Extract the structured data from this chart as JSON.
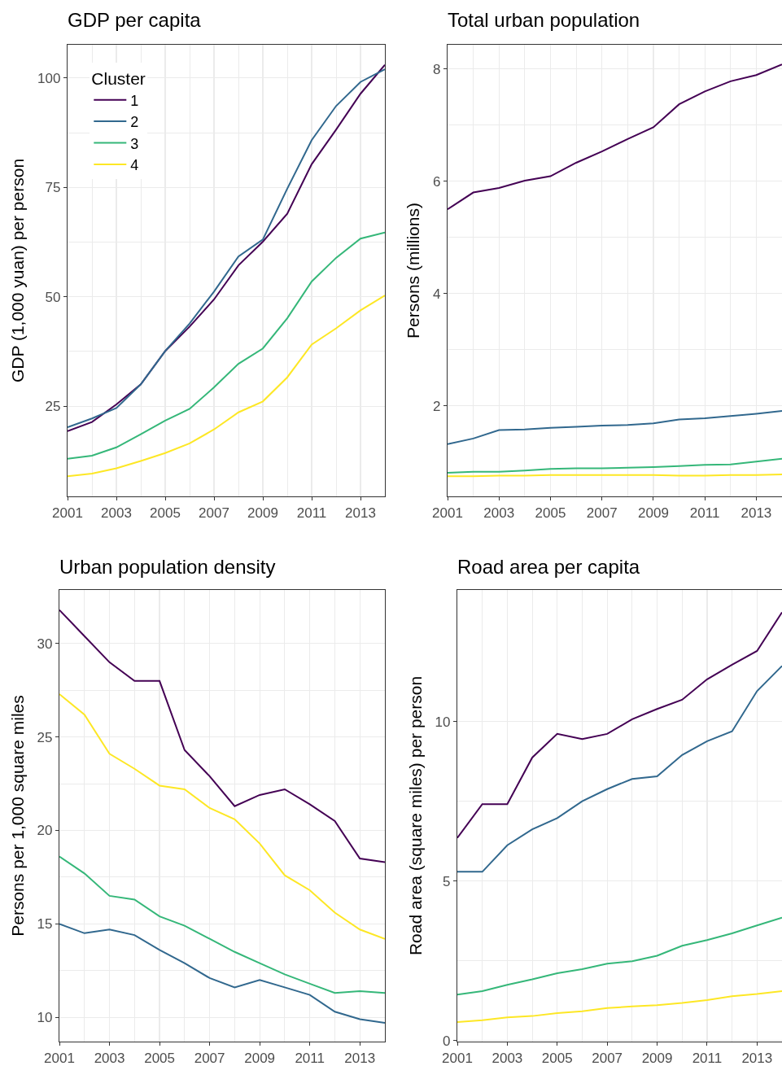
{
  "chart_data": [
    {
      "type": "line",
      "title": "GDP per capita",
      "ylabel": "GDP (1,000 yuan) per person",
      "legend_title": "Cluster",
      "legend": "top left",
      "grid": true,
      "x": [
        2001,
        2002,
        2003,
        2004,
        2005,
        2006,
        2007,
        2008,
        2009,
        2010,
        2011,
        2012,
        2013,
        2014
      ],
      "xlim": [
        2001,
        2014
      ],
      "xticks": [
        2001,
        2003,
        2005,
        2007,
        2009,
        2011,
        2013
      ],
      "ylim": [
        4.4,
        107.6
      ],
      "yticks": [
        25,
        50,
        75,
        100
      ],
      "series": [
        {
          "name": "1",
          "color": "#440154",
          "values": [
            19.3,
            21.4,
            25.4,
            30.0,
            37.6,
            43.2,
            49.4,
            57.2,
            62.6,
            69.0,
            80.3,
            88.2,
            96.4,
            103.0
          ]
        },
        {
          "name": "2",
          "color": "#31688e",
          "values": [
            20.2,
            22.2,
            24.6,
            30.0,
            37.6,
            43.9,
            51.2,
            59.2,
            63.1,
            74.7,
            85.8,
            93.6,
            99.1,
            102.0
          ]
        },
        {
          "name": "3",
          "color": "#35b779",
          "values": [
            13.0,
            13.7,
            15.6,
            18.6,
            21.7,
            24.4,
            29.3,
            34.7,
            38.2,
            45.1,
            53.5,
            58.9,
            63.3,
            64.7
          ]
        },
        {
          "name": "4",
          "color": "#fde725",
          "values": [
            9.0,
            9.6,
            10.8,
            12.5,
            14.3,
            16.5,
            19.7,
            23.6,
            26.1,
            31.6,
            39.1,
            42.8,
            46.9,
            50.3
          ]
        }
      ]
    },
    {
      "type": "line",
      "title": "Total urban population",
      "ylabel": "Persons (millions)",
      "grid": true,
      "x": [
        2001,
        2002,
        2003,
        2004,
        2005,
        2006,
        2007,
        2008,
        2009,
        2010,
        2011,
        2012,
        2013,
        2014
      ],
      "xlim": [
        2001,
        2014
      ],
      "xticks": [
        2001,
        2003,
        2005,
        2007,
        2009,
        2011,
        2013
      ],
      "ylim": [
        0.39,
        8.43
      ],
      "yticks": [
        2,
        4,
        6,
        8
      ],
      "series": [
        {
          "color": "#440154",
          "values": [
            5.5,
            5.8,
            5.88,
            6.01,
            6.09,
            6.33,
            6.53,
            6.75,
            6.96,
            7.37,
            7.6,
            7.78,
            7.89,
            8.08
          ]
        },
        {
          "color": "#31688e",
          "values": [
            1.32,
            1.42,
            1.57,
            1.58,
            1.61,
            1.63,
            1.65,
            1.66,
            1.69,
            1.76,
            1.78,
            1.82,
            1.86,
            1.91
          ]
        },
        {
          "color": "#35b779",
          "values": [
            0.81,
            0.83,
            0.83,
            0.85,
            0.88,
            0.89,
            0.89,
            0.9,
            0.91,
            0.93,
            0.95,
            0.96,
            1.01,
            1.06
          ]
        },
        {
          "color": "#fde725",
          "values": [
            0.75,
            0.75,
            0.76,
            0.76,
            0.77,
            0.77,
            0.77,
            0.77,
            0.77,
            0.76,
            0.76,
            0.77,
            0.77,
            0.78
          ]
        }
      ]
    },
    {
      "type": "line",
      "title": "Urban population density",
      "ylabel": "Persons per 1,000 square miles",
      "grid": true,
      "x": [
        2001,
        2002,
        2003,
        2004,
        2005,
        2006,
        2007,
        2008,
        2009,
        2010,
        2011,
        2012,
        2013,
        2014
      ],
      "xlim": [
        2001,
        2014
      ],
      "xticks": [
        2001,
        2003,
        2005,
        2007,
        2009,
        2011,
        2013
      ],
      "ylim": [
        8.7,
        32.87
      ],
      "yticks": [
        10,
        15,
        20,
        25,
        30
      ],
      "series": [
        {
          "color": "#440154",
          "values": [
            31.8,
            30.4,
            29.0,
            28.0,
            28.0,
            24.3,
            22.9,
            21.3,
            21.9,
            22.2,
            21.4,
            20.5,
            18.5,
            18.3
          ]
        },
        {
          "color": "#31688e",
          "values": [
            15.0,
            14.5,
            14.7,
            14.4,
            13.6,
            12.9,
            12.1,
            11.6,
            12.0,
            11.6,
            11.2,
            10.3,
            9.9,
            9.7
          ]
        },
        {
          "color": "#35b779",
          "values": [
            18.6,
            17.7,
            16.5,
            16.3,
            15.4,
            14.9,
            14.2,
            13.5,
            12.9,
            12.3,
            11.8,
            11.3,
            11.4,
            11.3
          ]
        },
        {
          "color": "#fde725",
          "values": [
            27.3,
            26.2,
            24.1,
            23.3,
            22.4,
            22.2,
            21.2,
            20.6,
            19.3,
            17.6,
            16.8,
            15.6,
            14.7,
            14.2
          ]
        }
      ]
    },
    {
      "type": "line",
      "title": "Road area per capita",
      "ylabel": "Road area (square miles) per person",
      "grid": true,
      "x": [
        2001,
        2002,
        2003,
        2004,
        2005,
        2006,
        2007,
        2008,
        2009,
        2010,
        2011,
        2012,
        2013,
        2014
      ],
      "xlim": [
        2001,
        2014
      ],
      "xticks": [
        2001,
        2003,
        2005,
        2007,
        2009,
        2011,
        2013
      ],
      "ylim": [
        -0.03,
        14.12
      ],
      "yticks": [
        0,
        5,
        10
      ],
      "series": [
        {
          "color": "#440154",
          "values": [
            6.35,
            7.41,
            7.41,
            8.87,
            9.61,
            9.45,
            9.61,
            10.07,
            10.39,
            10.68,
            11.32,
            11.78,
            12.21,
            13.42
          ]
        },
        {
          "color": "#31688e",
          "values": [
            5.29,
            5.29,
            6.12,
            6.62,
            6.97,
            7.5,
            7.88,
            8.2,
            8.28,
            8.95,
            9.38,
            9.69,
            10.95,
            11.74
          ]
        },
        {
          "color": "#35b779",
          "values": [
            1.44,
            1.55,
            1.75,
            1.92,
            2.11,
            2.24,
            2.41,
            2.49,
            2.66,
            2.97,
            3.15,
            3.36,
            3.61,
            3.85
          ]
        },
        {
          "color": "#fde725",
          "values": [
            0.58,
            0.64,
            0.73,
            0.77,
            0.86,
            0.92,
            1.02,
            1.07,
            1.11,
            1.18,
            1.27,
            1.39,
            1.46,
            1.55
          ]
        }
      ]
    }
  ]
}
